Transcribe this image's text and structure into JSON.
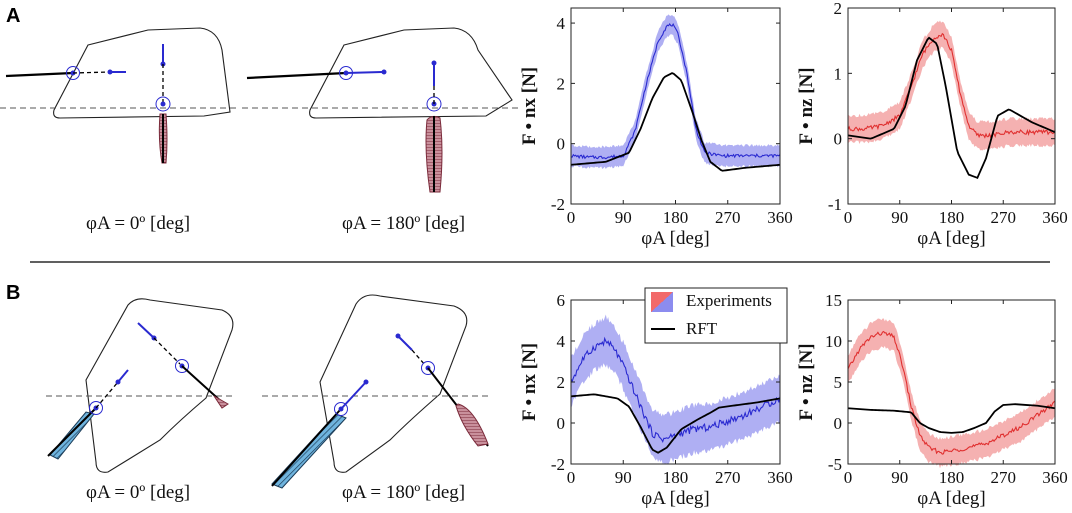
{
  "panels": {
    "a": {
      "letter": "A",
      "caption_left": "φA = 0º [deg]",
      "caption_right": "φA = 180º [deg]"
    },
    "b": {
      "letter": "B",
      "caption_left": "φA = 0º [deg]",
      "caption_right": "φA = 180º [deg]"
    }
  },
  "legend": {
    "experiments": "Experiments",
    "rft": "RFT"
  },
  "colors": {
    "blue": "#2a2ad0",
    "blue_band": "#9d9df2",
    "red": "#e03030",
    "red_band": "#f2a0a0",
    "black": "#000000",
    "teal": "#3a9ad0",
    "maroon": "#a0304a"
  },
  "chart_data": [
    {
      "id": "A-x",
      "type": "line",
      "title": "",
      "xlabel": "φA [deg]",
      "ylabel": "F • nx [N]",
      "xlim": [
        0,
        360
      ],
      "ylim": [
        -2,
        4.5
      ],
      "xticks": [
        0,
        90,
        180,
        270,
        360
      ],
      "yticks": [
        -2,
        0,
        2,
        4
      ],
      "series": [
        {
          "name": "Experiments",
          "color": "#2a2ad0",
          "band": 0.3,
          "x": [
            0,
            30,
            60,
            90,
            110,
            130,
            150,
            165,
            175,
            185,
            200,
            215,
            230,
            260,
            300,
            360
          ],
          "y": [
            -0.4,
            -0.45,
            -0.45,
            -0.4,
            0.4,
            2.0,
            3.4,
            3.9,
            3.95,
            3.6,
            2.3,
            0.5,
            -0.3,
            -0.4,
            -0.4,
            -0.4
          ]
        },
        {
          "name": "RFT",
          "color": "#000000",
          "x": [
            0,
            60,
            100,
            120,
            140,
            160,
            175,
            190,
            210,
            225,
            240,
            260,
            300,
            360
          ],
          "y": [
            -0.7,
            -0.6,
            -0.3,
            0.5,
            1.5,
            2.2,
            2.35,
            2.1,
            1.0,
            0.1,
            -0.6,
            -0.9,
            -0.8,
            -0.7
          ]
        }
      ]
    },
    {
      "id": "A-z",
      "type": "line",
      "title": "",
      "xlabel": "φA [deg]",
      "ylabel": "F • nz [N]",
      "xlim": [
        0,
        360
      ],
      "ylim": [
        -1,
        2
      ],
      "xticks": [
        0,
        90,
        180,
        270,
        360
      ],
      "yticks": [
        -1,
        0,
        1,
        2
      ],
      "series": [
        {
          "name": "Experiments",
          "color": "#e03030",
          "band": 0.18,
          "x": [
            0,
            30,
            60,
            90,
            110,
            130,
            150,
            165,
            180,
            195,
            210,
            225,
            250,
            280,
            320,
            360
          ],
          "y": [
            0.15,
            0.15,
            0.2,
            0.35,
            0.8,
            1.3,
            1.55,
            1.6,
            1.35,
            0.7,
            0.2,
            0.05,
            0.05,
            0.1,
            0.1,
            0.1
          ]
        },
        {
          "name": "RFT",
          "color": "#000000",
          "x": [
            0,
            40,
            80,
            100,
            120,
            140,
            155,
            170,
            190,
            210,
            225,
            240,
            260,
            280,
            320,
            360
          ],
          "y": [
            0.05,
            0.0,
            0.15,
            0.5,
            1.2,
            1.55,
            1.45,
            0.8,
            -0.2,
            -0.55,
            -0.6,
            -0.3,
            0.35,
            0.45,
            0.25,
            0.1
          ]
        }
      ]
    },
    {
      "id": "B-x",
      "type": "line",
      "title": "",
      "xlabel": "φA [deg]",
      "ylabel": "F • nx [N]",
      "xlim": [
        0,
        360
      ],
      "ylim": [
        -2,
        6
      ],
      "xticks": [
        0,
        90,
        180,
        270,
        360
      ],
      "yticks": [
        -2,
        0,
        2,
        4,
        6
      ],
      "series": [
        {
          "name": "Experiments",
          "color": "#2a2ad0",
          "band": 1.0,
          "x": [
            0,
            20,
            40,
            60,
            75,
            90,
            105,
            120,
            140,
            160,
            180,
            210,
            240,
            270,
            300,
            330,
            360
          ],
          "y": [
            2.0,
            3.1,
            3.7,
            4.0,
            3.6,
            2.8,
            1.8,
            0.8,
            -0.5,
            -0.8,
            -0.6,
            -0.3,
            -0.2,
            0.1,
            0.4,
            0.8,
            1.2
          ]
        },
        {
          "name": "RFT",
          "color": "#000000",
          "x": [
            0,
            40,
            80,
            100,
            120,
            140,
            150,
            165,
            190,
            220,
            240,
            255,
            280,
            320,
            360
          ],
          "y": [
            1.3,
            1.4,
            1.2,
            0.8,
            -0.2,
            -1.3,
            -1.45,
            -1.2,
            -0.3,
            0.2,
            0.5,
            0.75,
            0.85,
            1.0,
            1.2
          ]
        }
      ]
    },
    {
      "id": "B-z",
      "type": "line",
      "title": "",
      "xlabel": "φA [deg]",
      "ylabel": "F • nz [N]",
      "xlim": [
        0,
        360
      ],
      "ylim": [
        -5,
        15
      ],
      "xticks": [
        0,
        90,
        180,
        270,
        360
      ],
      "yticks": [
        -5,
        0,
        5,
        10,
        15
      ],
      "series": [
        {
          "name": "Experiments",
          "color": "#e03030",
          "band": 1.5,
          "x": [
            0,
            20,
            40,
            60,
            80,
            95,
            110,
            125,
            140,
            160,
            180,
            210,
            240,
            270,
            300,
            330,
            360
          ],
          "y": [
            6.5,
            9.0,
            10.5,
            11.0,
            10.5,
            7.0,
            2.0,
            -1.5,
            -3.0,
            -3.6,
            -3.4,
            -3.0,
            -2.5,
            -1.5,
            -0.5,
            1.0,
            2.5
          ]
        },
        {
          "name": "RFT",
          "color": "#000000",
          "x": [
            0,
            40,
            80,
            110,
            125,
            140,
            160,
            180,
            200,
            220,
            240,
            255,
            270,
            290,
            330,
            360
          ],
          "y": [
            1.8,
            1.6,
            1.5,
            1.3,
            0.0,
            -0.6,
            -1.1,
            -1.2,
            -1.1,
            -0.6,
            0.0,
            1.4,
            2.2,
            2.3,
            2.1,
            1.8
          ]
        }
      ]
    }
  ]
}
